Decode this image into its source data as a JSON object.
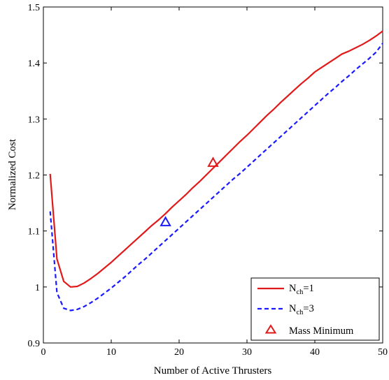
{
  "chart_data": {
    "type": "line",
    "xlabel": "Number of Active Thrusters",
    "ylabel": "Normalized Cost",
    "xlim": [
      0,
      50
    ],
    "ylim": [
      0.9,
      1.5
    ],
    "xticks": [
      0,
      10,
      20,
      30,
      40,
      50
    ],
    "yticks": [
      0.9,
      1,
      1.1,
      1.2,
      1.3,
      1.4,
      1.5
    ],
    "xtick_labels": [
      "0",
      "10",
      "20",
      "30",
      "40",
      "50"
    ],
    "ytick_labels": [
      "0.9",
      "1",
      "1.1",
      "1.2",
      "1.3",
      "1.4",
      "1.5"
    ],
    "grid": false,
    "legend_position": "bottom-right",
    "series": [
      {
        "name_main": "N",
        "name_sub": "ch",
        "name_suffix": "=1",
        "color": "#e01a1a",
        "style": "solid",
        "x": [
          1,
          2,
          3,
          4,
          5,
          6,
          7,
          8,
          9,
          10,
          11,
          12,
          13,
          14,
          15,
          16,
          17,
          18,
          19,
          20,
          21,
          22,
          23,
          24,
          25,
          26,
          27,
          28,
          29,
          30,
          31,
          32,
          33,
          34,
          35,
          36,
          37,
          38,
          39,
          40,
          41,
          42,
          43,
          44,
          45,
          46,
          47,
          48,
          49,
          50
        ],
        "y": [
          1.202,
          1.05,
          1.01,
          1.0,
          1.001,
          1.007,
          1.015,
          1.024,
          1.034,
          1.044,
          1.055,
          1.066,
          1.077,
          1.088,
          1.099,
          1.11,
          1.12,
          1.131,
          1.143,
          1.154,
          1.165,
          1.177,
          1.188,
          1.2,
          1.212,
          1.224,
          1.236,
          1.248,
          1.26,
          1.271,
          1.283,
          1.295,
          1.307,
          1.318,
          1.33,
          1.341,
          1.352,
          1.363,
          1.373,
          1.384,
          1.392,
          1.4,
          1.408,
          1.416,
          1.421,
          1.427,
          1.433,
          1.44,
          1.448,
          1.457
        ]
      },
      {
        "name_main": "N",
        "name_sub": "ch",
        "name_suffix": "=3",
        "color": "#1a1aff",
        "style": "dashed",
        "x": [
          1,
          2,
          3,
          4,
          5,
          6,
          7,
          8,
          9,
          10,
          11,
          12,
          13,
          14,
          15,
          16,
          17,
          18,
          19,
          20,
          21,
          22,
          23,
          24,
          25,
          26,
          27,
          28,
          29,
          30,
          31,
          32,
          33,
          34,
          35,
          36,
          37,
          38,
          39,
          40,
          41,
          42,
          43,
          44,
          45,
          46,
          47,
          48,
          49,
          50
        ],
        "y": [
          1.135,
          0.99,
          0.962,
          0.958,
          0.96,
          0.965,
          0.972,
          0.98,
          0.989,
          0.998,
          1.008,
          1.018,
          1.029,
          1.04,
          1.05,
          1.061,
          1.072,
          1.083,
          1.094,
          1.105,
          1.116,
          1.127,
          1.138,
          1.149,
          1.16,
          1.171,
          1.182,
          1.193,
          1.203,
          1.214,
          1.225,
          1.236,
          1.247,
          1.258,
          1.269,
          1.28,
          1.291,
          1.302,
          1.313,
          1.324,
          1.335,
          1.346,
          1.356,
          1.367,
          1.377,
          1.388,
          1.398,
          1.408,
          1.419,
          1.435
        ]
      }
    ],
    "markers": [
      {
        "x": 25,
        "y": 1.222,
        "color": "#e01a1a"
      },
      {
        "x": 18,
        "y": 1.116,
        "color": "#1a1aff"
      }
    ],
    "legend_marker_label": "Mass Minimum",
    "legend_marker_color": "#e01a1a"
  }
}
